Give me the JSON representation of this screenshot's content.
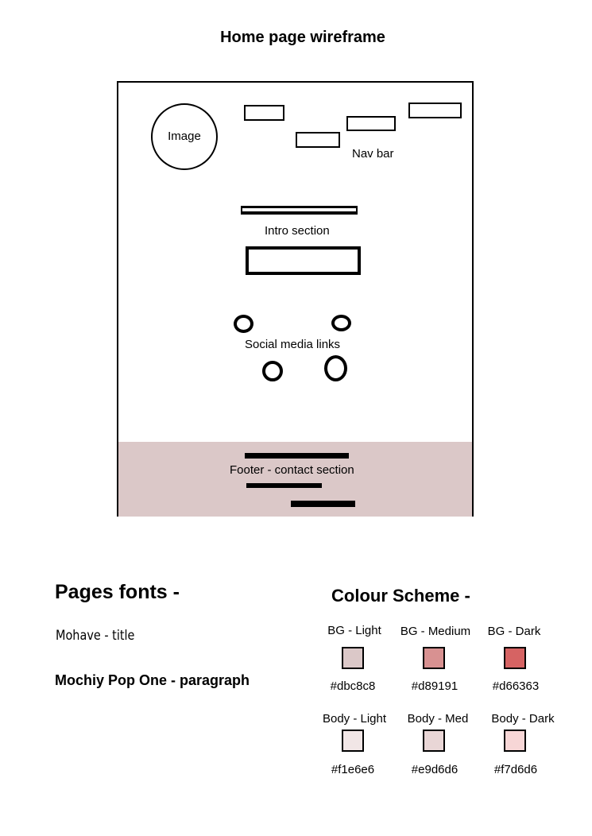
{
  "title": "Home page wireframe",
  "wireframe": {
    "image_label": "Image",
    "nav_label": "Nav bar",
    "intro_label": "Intro section",
    "social_label": "Social media links",
    "footer_label": "Footer - contact section",
    "footer_color": "#dbc8c8"
  },
  "fonts": {
    "heading": "Pages fonts -",
    "title_font": "Mohave - title",
    "paragraph_font": "Mochiy Pop One - paragraph"
  },
  "colours": {
    "heading": "Colour Scheme -",
    "swatches": [
      {
        "name": "BG - Light",
        "hex": "#dbc8c8"
      },
      {
        "name": "BG - Medium",
        "hex": "#d89191"
      },
      {
        "name": "BG - Dark",
        "hex": "#d66363"
      },
      {
        "name": "Body - Light",
        "hex": "#f1e6e6"
      },
      {
        "name": "Body - Med",
        "hex": "#e9d6d6"
      },
      {
        "name": "Body - Dark",
        "hex": "#f7d6d6"
      }
    ]
  }
}
